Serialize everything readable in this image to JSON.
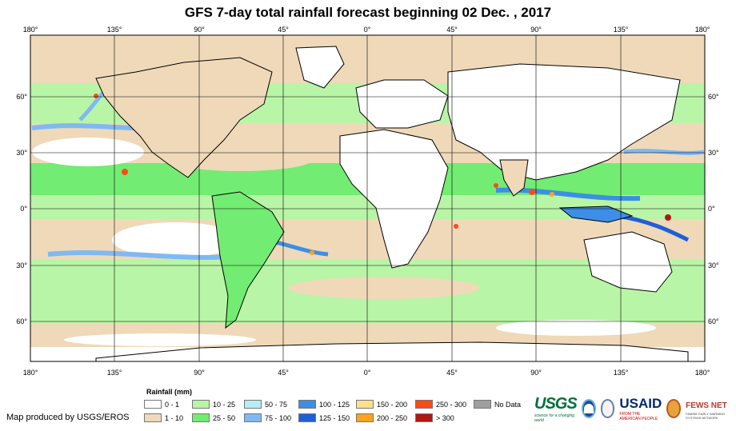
{
  "title": "GFS 7-day total rainfall forecast beginning 02 Dec. , 2017",
  "lon_ticks": [
    "180°",
    "135°",
    "90°",
    "45°",
    "0°",
    "45°",
    "90°",
    "135°",
    "180°"
  ],
  "lat_ticks": [
    "60°",
    "30°",
    "0°",
    "30°",
    "60°"
  ],
  "legend": {
    "title": "Rainfall (mm)",
    "items": [
      {
        "label": "0 - 1",
        "color": "#ffffff"
      },
      {
        "label": "1 - 10",
        "color": "#efd9b9"
      },
      {
        "label": "10 - 25",
        "color": "#b8f5a6"
      },
      {
        "label": "25 - 50",
        "color": "#72ec72"
      },
      {
        "label": "50 - 75",
        "color": "#b5eef7"
      },
      {
        "label": "75 - 100",
        "color": "#7fb9f2"
      },
      {
        "label": "100 - 125",
        "color": "#3d8ee6"
      },
      {
        "label": "125 - 150",
        "color": "#1f5fd6"
      },
      {
        "label": "150 - 200",
        "color": "#ffe08a"
      },
      {
        "label": "200 - 250",
        "color": "#ffa21f"
      },
      {
        "label": "250 - 300",
        "color": "#ff4a14"
      },
      {
        "label": "> 300",
        "color": "#b01616"
      },
      {
        "label": "No Data",
        "color": "#9e9e9e"
      }
    ]
  },
  "credit": "Map produced by USGS/EROS",
  "logos": {
    "usgs": "USGS",
    "usgs_tagline": "science for a changing world",
    "usaid": "USAID",
    "usaid_tagline": "FROM THE AMERICAN PEOPLE",
    "fews": "FEWS NET",
    "fews_tagline": "FAMINE EARLY WARNING SYSTEMS NETWORK"
  }
}
